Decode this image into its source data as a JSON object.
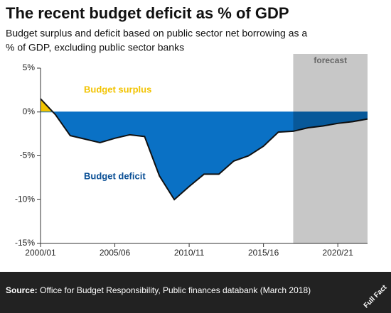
{
  "chart_data": {
    "type": "area",
    "title": "The recent budget deficit as % of GDP",
    "subtitle": [
      "Budget surplus and deficit based on public sector net borrowing as a",
      "% of GDP, excluding public sector banks"
    ],
    "categories": [
      "2000/01",
      null,
      null,
      null,
      null,
      "2005/06",
      null,
      null,
      null,
      null,
      "2010/11",
      null,
      null,
      null,
      null,
      "2015/16",
      null,
      null,
      null,
      null,
      "2020/21",
      null,
      null
    ],
    "values": [
      1.5,
      -0.3,
      -2.7,
      -3.1,
      -3.5,
      -3.0,
      -2.6,
      -2.8,
      -7.3,
      -10.0,
      -8.5,
      -7.1,
      -7.1,
      -5.6,
      -5.0,
      -3.9,
      -2.3,
      -2.2,
      -1.8,
      -1.6,
      -1.3,
      -1.1,
      -0.8
    ],
    "positive_color": "#f2c300",
    "negative_color": "#0a71c5",
    "line_color": "#111111",
    "ylim": [
      -15,
      5
    ],
    "yticks": [
      {
        "value": 5,
        "label": "5%"
      },
      {
        "value": 0,
        "label": "0%"
      },
      {
        "value": -5,
        "label": "-5%"
      },
      {
        "value": -10,
        "label": "-10%"
      },
      {
        "value": -15,
        "label": "-15%"
      }
    ],
    "annotations": [
      "Budget surplus",
      "Budget deficit"
    ],
    "forecast": {
      "label": "forecast",
      "from": 17
    },
    "source_label": "Source:",
    "source": "Office for Budget Responsibility, Public finances databank (March 2018)",
    "logo": "Full Fact"
  }
}
